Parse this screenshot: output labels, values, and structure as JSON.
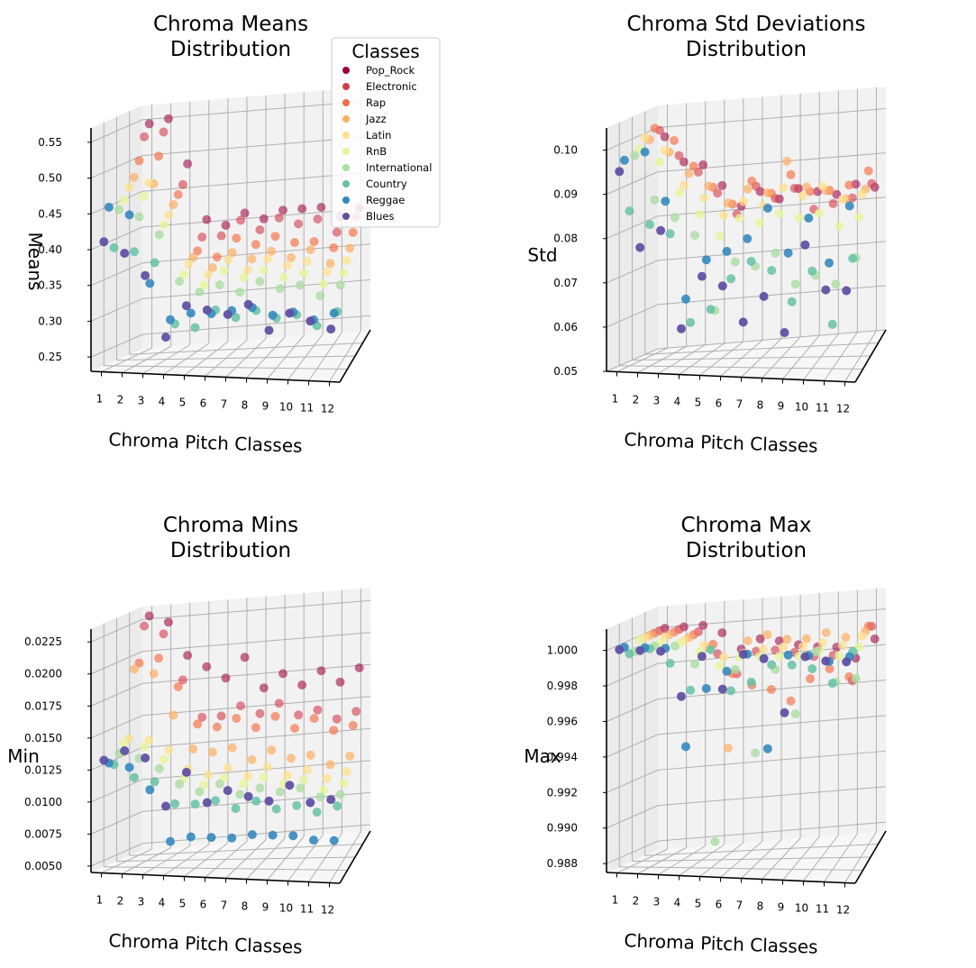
{
  "chart_data": [
    {
      "type": "scatter",
      "title": "Chroma Means\nDistribution",
      "xlabel": "Chroma Pitch Classes",
      "ylabel": "Means",
      "x_ticks": [
        "1",
        "2",
        "3",
        "4",
        "5",
        "6",
        "7",
        "8",
        "9",
        "10",
        "11",
        "12"
      ],
      "z_ticks": [
        "0.25",
        "0.30",
        "0.35",
        "0.40",
        "0.45",
        "0.50",
        "0.55"
      ],
      "zlim": [
        0.23,
        0.57
      ],
      "legend": {
        "title": "Classes",
        "placement": "top-right"
      },
      "series": [
        {
          "name": "Pop_Rock",
          "values": [
            0.545,
            0.55,
            0.485,
            0.405,
            0.395,
            0.41,
            0.4,
            0.41,
            0.41,
            0.41,
            0.395,
            0.405
          ]
        },
        {
          "name": "Electronic",
          "values": [
            0.53,
            0.535,
            0.46,
            0.385,
            0.385,
            0.405,
            0.39,
            0.405,
            0.395,
            0.4,
            0.38,
            0.4
          ]
        },
        {
          "name": "Rap",
          "values": [
            0.5,
            0.505,
            0.45,
            0.37,
            0.36,
            0.385,
            0.375,
            0.385,
            0.375,
            0.375,
            0.365,
            0.385
          ]
        },
        {
          "name": "Jazz",
          "values": [
            0.48,
            0.47,
            0.44,
            0.365,
            0.35,
            0.37,
            0.36,
            0.37,
            0.36,
            0.37,
            0.35,
            0.37
          ]
        },
        {
          "name": "Latin",
          "values": [
            0.47,
            0.475,
            0.43,
            0.36,
            0.345,
            0.365,
            0.35,
            0.365,
            0.355,
            0.36,
            0.345,
            0.36
          ]
        },
        {
          "name": "RnB",
          "values": [
            0.455,
            0.46,
            0.42,
            0.35,
            0.335,
            0.355,
            0.345,
            0.355,
            0.345,
            0.35,
            0.335,
            0.35
          ]
        },
        {
          "name": "International",
          "values": [
            0.445,
            0.435,
            0.41,
            0.345,
            0.33,
            0.34,
            0.33,
            0.345,
            0.335,
            0.34,
            0.325,
            0.34
          ]
        },
        {
          "name": "Country",
          "values": [
            0.395,
            0.39,
            0.375,
            0.29,
            0.285,
            0.31,
            0.3,
            0.31,
            0.3,
            0.305,
            0.29,
            0.31
          ]
        },
        {
          "name": "Reggae",
          "values": [
            0.455,
            0.445,
            0.35,
            0.3,
            0.31,
            0.31,
            0.315,
            0.32,
            0.31,
            0.315,
            0.305,
            0.315
          ]
        },
        {
          "name": "Blues",
          "values": [
            0.41,
            0.395,
            0.365,
            0.28,
            0.325,
            0.32,
            0.315,
            0.33,
            0.295,
            0.32,
            0.31,
            0.3
          ]
        }
      ]
    },
    {
      "type": "scatter",
      "title": "Chroma Std Deviations\nDistribution",
      "xlabel": "Chroma Pitch Classes",
      "ylabel": "Std",
      "x_ticks": [
        "1",
        "2",
        "3",
        "4",
        "5",
        "6",
        "7",
        "8",
        "9",
        "10",
        "11",
        "12"
      ],
      "z_ticks": [
        "0.05",
        "0.06",
        "0.07",
        "0.08",
        "0.09",
        "0.10"
      ],
      "zlim": [
        0.05,
        0.105
      ],
      "series": [
        {
          "name": "Pop_Rock",
          "values": [
            0.098,
            0.092,
            0.091,
            0.086,
            0.081,
            0.084,
            0.082,
            0.084,
            0.083,
            0.082,
            0.084,
            0.083
          ]
        },
        {
          "name": "Electronic",
          "values": [
            0.1,
            0.094,
            0.09,
            0.085,
            0.08,
            0.086,
            0.083,
            0.085,
            0.08,
            0.081,
            0.082,
            0.085
          ]
        },
        {
          "name": "Rap",
          "values": [
            0.101,
            0.098,
            0.092,
            0.087,
            0.083,
            0.088,
            0.085,
            0.089,
            0.085,
            0.085,
            0.086,
            0.089
          ]
        },
        {
          "name": "Jazz",
          "values": [
            0.099,
            0.096,
            0.091,
            0.088,
            0.084,
            0.087,
            0.086,
            0.093,
            0.087,
            0.086,
            0.084,
            0.086
          ]
        },
        {
          "name": "Latin",
          "values": [
            0.1,
            0.097,
            0.089,
            0.086,
            0.082,
            0.085,
            0.084,
            0.088,
            0.086,
            0.088,
            0.085,
            0.086
          ]
        },
        {
          "name": "RnB",
          "values": [
            0.098,
            0.095,
            0.088,
            0.083,
            0.078,
            0.082,
            0.081,
            0.083,
            0.082,
            0.083,
            0.08,
            0.082
          ]
        },
        {
          "name": "International",
          "values": [
            0.097,
            0.087,
            0.083,
            0.079,
            0.062,
            0.073,
            0.072,
            0.075,
            0.068,
            0.07,
            0.068,
            0.074
          ]
        },
        {
          "name": "Country",
          "values": [
            0.085,
            0.082,
            0.08,
            0.06,
            0.063,
            0.07,
            0.074,
            0.072,
            0.065,
            0.072,
            0.06,
            0.075
          ]
        },
        {
          "name": "Reggae",
          "values": [
            0.097,
            0.099,
            0.088,
            0.066,
            0.075,
            0.077,
            0.08,
            0.087,
            0.077,
            0.085,
            0.075,
            0.088
          ]
        },
        {
          "name": "Blues",
          "values": [
            0.095,
            0.078,
            0.082,
            0.06,
            0.072,
            0.07,
            0.062,
            0.068,
            0.06,
            0.08,
            0.07,
            0.07
          ]
        }
      ]
    },
    {
      "type": "scatter",
      "title": "Chroma Mins\nDistribution",
      "xlabel": "Chroma Pitch Classes",
      "ylabel": "Min",
      "x_ticks": [
        "1",
        "2",
        "3",
        "4",
        "5",
        "6",
        "7",
        "8",
        "9",
        "10",
        "11",
        "12"
      ],
      "z_ticks": [
        "0.0050",
        "0.0075",
        "0.0100",
        "0.0125",
        "0.0150",
        "0.0175",
        "0.0200",
        "0.0225"
      ],
      "zlim": [
        0.0045,
        0.0235
      ],
      "series": [
        {
          "name": "Pop_Rock",
          "values": [
            0.0228,
            0.0222,
            0.0195,
            0.0185,
            0.0175,
            0.019,
            0.0165,
            0.0175,
            0.0165,
            0.0175,
            0.0165,
            0.0175
          ]
        },
        {
          "name": "Electronic",
          "values": [
            0.0222,
            0.0215,
            0.0178,
            0.0148,
            0.0148,
            0.0155,
            0.0148,
            0.0155,
            0.0145,
            0.0148,
            0.014,
            0.0145
          ]
        },
        {
          "name": "Rap",
          "values": [
            0.0195,
            0.0198,
            0.0175,
            0.0145,
            0.0142,
            0.0148,
            0.014,
            0.0148,
            0.0138,
            0.0145,
            0.0135,
            0.0138
          ]
        },
        {
          "name": "Jazz",
          "values": [
            0.0192,
            0.0188,
            0.0155,
            0.0128,
            0.0125,
            0.0128,
            0.0118,
            0.0125,
            0.0118,
            0.012,
            0.0112,
            0.0118
          ]
        },
        {
          "name": "Latin",
          "values": [
            0.014,
            0.0138,
            0.013,
            0.0115,
            0.011,
            0.0115,
            0.0108,
            0.0115,
            0.0108,
            0.0112,
            0.0105,
            0.011
          ]
        },
        {
          "name": "RnB",
          "values": [
            0.0138,
            0.0135,
            0.0125,
            0.011,
            0.0105,
            0.011,
            0.0105,
            0.011,
            0.0105,
            0.0108,
            0.01,
            0.0105
          ]
        },
        {
          "name": "International",
          "values": [
            0.0132,
            0.0128,
            0.012,
            0.0108,
            0.0102,
            0.0108,
            0.01,
            0.0105,
            0.0102,
            0.0105,
            0.0098,
            0.01
          ]
        },
        {
          "name": "Country",
          "values": [
            0.0125,
            0.0115,
            0.0112,
            0.0095,
            0.0095,
            0.0098,
            0.0092,
            0.0098,
            0.0092,
            0.0095,
            0.009,
            0.0095
          ]
        },
        {
          "name": "Reggae",
          "values": [
            0.0128,
            0.0125,
            0.0108,
            0.0068,
            0.0072,
            0.0072,
            0.0072,
            0.0075,
            0.0075,
            0.0075,
            0.0072,
            0.0072
          ]
        },
        {
          "name": "Blues",
          "values": [
            0.0132,
            0.014,
            0.0135,
            0.0098,
            0.0125,
            0.0102,
            0.0112,
            0.0108,
            0.0105,
            0.0118,
            0.0105,
            0.0108
          ]
        }
      ]
    },
    {
      "type": "scatter",
      "title": "Chroma Max\nDistribution",
      "xlabel": "Chroma Pitch Classes",
      "ylabel": "Max",
      "x_ticks": [
        "1",
        "2",
        "3",
        "4",
        "5",
        "6",
        "7",
        "8",
        "9",
        "10",
        "11",
        "12"
      ],
      "z_ticks": [
        "0.988",
        "0.990",
        "0.992",
        "0.994",
        "0.996",
        "0.998",
        "1.000"
      ],
      "zlim": [
        0.9875,
        1.0012
      ],
      "series": [
        {
          "name": "Pop_Rock",
          "values": [
            1.0,
            1.0,
            1.0,
            0.9995,
            0.9985,
            0.999,
            0.9988,
            0.9985,
            0.9983,
            0.9982,
            0.9975,
            0.9985
          ]
        },
        {
          "name": "Electronic",
          "values": [
            1.0,
            1.0,
            0.9998,
            0.9985,
            0.9973,
            0.9985,
            0.9985,
            0.9983,
            0.998,
            0.998,
            0.9965,
            0.9995
          ]
        },
        {
          "name": "Rap",
          "values": [
            1.0,
            1.0,
            0.9998,
            0.9992,
            0.9975,
            0.9968,
            0.9965,
            0.9958,
            0.997,
            0.9975,
            0.997,
            0.9998
          ]
        },
        {
          "name": "Jazz",
          "values": [
            1.0,
            1.0,
            0.9998,
            0.9992,
            0.9935,
            0.9995,
            0.9998,
            0.9995,
            0.9995,
            0.9998,
            0.9995,
            0.9998
          ]
        },
        {
          "name": "Latin",
          "values": [
            1.0,
            1.0,
            0.9998,
            0.9995,
            0.9988,
            0.999,
            0.9992,
            0.9993,
            0.9993,
            0.9995,
            0.9993,
            0.9998
          ]
        },
        {
          "name": "RnB",
          "values": [
            1.0,
            0.9998,
            0.9998,
            0.9993,
            0.9985,
            0.999,
            0.999,
            0.999,
            0.999,
            0.9993,
            0.999,
            0.9995
          ]
        },
        {
          "name": "International",
          "values": [
            0.9995,
            0.9998,
            0.9998,
            0.9988,
            0.9888,
            0.9985,
            0.9938,
            0.9985,
            0.996,
            0.9995,
            0.9978,
            0.998
          ]
        },
        {
          "name": "Country",
          "values": [
            0.9995,
            0.9998,
            0.999,
            0.9975,
            0.9998,
            0.9975,
            0.998,
            0.999,
            0.999,
            0.9988,
            0.998,
            0.9998
          ]
        },
        {
          "name": "Reggae",
          "values": [
            1.0,
            1.0,
            1.0,
            0.9945,
            0.9978,
            0.9988,
            0.9998,
            0.9945,
            0.9998,
            0.9998,
            0.9995,
            0.9998
          ]
        },
        {
          "name": "Blues",
          "values": [
            1.0,
            1.0,
            1.0,
            0.9975,
            0.9998,
            0.998,
            1.0,
            0.9998,
            0.9968,
            1.0,
            0.9998,
            0.9998
          ]
        }
      ]
    }
  ],
  "colors": {
    "Pop_Rock": "#9e0142",
    "Electronic": "#d53e4f",
    "Rap": "#f46d43",
    "Jazz": "#fdae61",
    "Latin": "#fee08b",
    "RnB": "#e6f598",
    "International": "#abdda4",
    "Country": "#66c2a5",
    "Reggae": "#3288bd",
    "Blues": "#5e4fa2"
  }
}
